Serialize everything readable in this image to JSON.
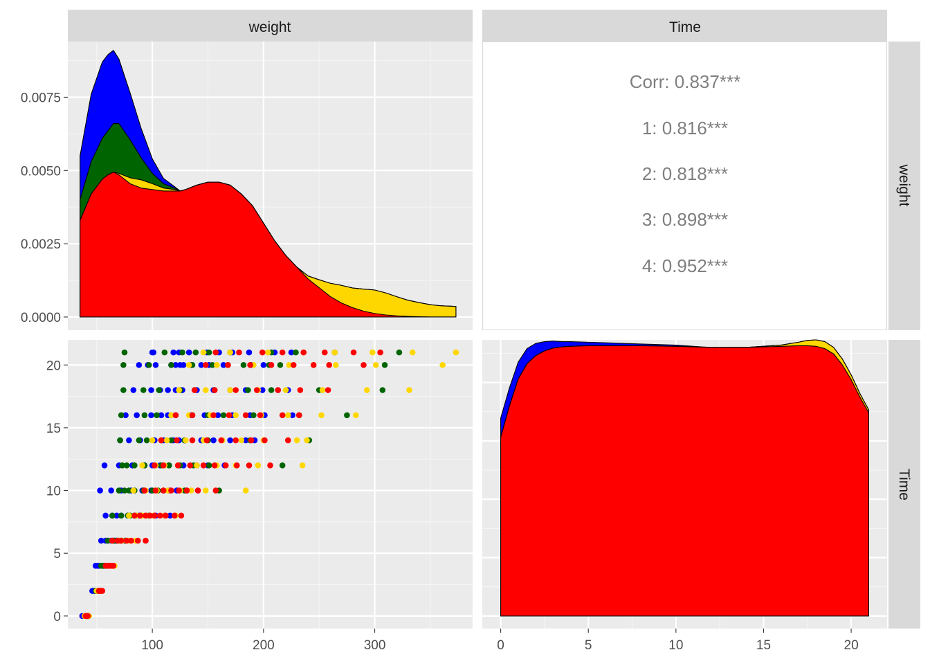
{
  "chart_data": {
    "type": "pairs-plot",
    "variables": [
      "weight",
      "Time"
    ],
    "strip_labels": {
      "top": [
        "weight",
        "Time"
      ],
      "right": [
        "weight",
        "Time"
      ]
    },
    "colors": {
      "1": "#0000FF",
      "2": "#006400",
      "3": "#FFD700",
      "4": "#FF0000"
    },
    "group_order": [
      "1",
      "2",
      "3",
      "4"
    ],
    "weight_density": {
      "type": "area",
      "position": "stack",
      "xlim": [
        24,
        388
      ],
      "ylim": [
        -0.00045,
        0.0094
      ],
      "y_ticks": [
        0.0,
        0.0025,
        0.005,
        0.0075
      ],
      "y_tick_labels": [
        "0.0000",
        "0.0025",
        "0.0050",
        "0.0075"
      ],
      "x_ticks": [
        100,
        200,
        300
      ],
      "x": [
        35,
        45,
        55,
        60,
        65,
        70,
        80,
        90,
        100,
        110,
        120,
        125,
        130,
        140,
        150,
        160,
        170,
        180,
        190,
        200,
        210,
        220,
        230,
        240,
        250,
        260,
        270,
        280,
        290,
        300,
        310,
        320,
        330,
        340,
        350,
        360,
        373
      ],
      "series": [
        {
          "name": "4",
          "values": [
            0.0033,
            0.0042,
            0.0047,
            0.00485,
            0.00495,
            0.00485,
            0.00455,
            0.0044,
            0.00435,
            0.0043,
            0.0043,
            0.0043,
            0.00435,
            0.0045,
            0.0046,
            0.0046,
            0.0045,
            0.0042,
            0.0038,
            0.0032,
            0.0026,
            0.0021,
            0.0017,
            0.0013,
            0.001,
            0.0007,
            0.00048,
            0.00032,
            0.0002,
            0.00012,
            7e-05,
            4e-05,
            2e-05,
            1e-05,
            0,
            0,
            0
          ]
        },
        {
          "name": "3",
          "values": [
            0,
            0,
            0,
            0,
            0,
            5e-05,
            0.0002,
            0.00028,
            0.0002,
            0.0001,
            5e-05,
            0,
            0,
            0,
            0,
            0,
            0,
            0,
            0,
            0,
            0,
            0,
            0,
            0.0001,
            0.00027,
            0.00045,
            0.0006,
            0.00067,
            0.00075,
            0.0008,
            0.00075,
            0.00065,
            0.00055,
            0.00048,
            0.00042,
            0.00038,
            0.00036
          ]
        },
        {
          "name": "2",
          "values": [
            0.0007,
            0.0011,
            0.0014,
            0.0015,
            0.00165,
            0.0017,
            0.0013,
            0.00075,
            0.00035,
            0.00015,
            5e-05,
            0,
            0,
            0,
            0,
            0,
            0,
            0,
            0,
            0,
            0,
            0,
            0,
            0,
            0,
            0,
            0,
            0,
            0,
            0,
            0,
            0,
            0,
            0,
            0,
            0,
            0
          ]
        },
        {
          "name": "1",
          "values": [
            0.0015,
            0.0023,
            0.0026,
            0.0026,
            0.0025,
            0.0022,
            0.0016,
            0.001,
            0.0005,
            0.00018,
            5e-05,
            0,
            0,
            0,
            0,
            0,
            0,
            0,
            0,
            0,
            0,
            0,
            0,
            0,
            0,
            0,
            0,
            0,
            0,
            0,
            0,
            0,
            0,
            0,
            0,
            0,
            0
          ]
        }
      ]
    },
    "correlation": {
      "title": "Corr: 0.837***",
      "lines": [
        "1: 0.816***",
        "2: 0.818***",
        "3: 0.898***",
        "4: 0.952***"
      ]
    },
    "scatter": {
      "type": "scatter",
      "xlim": [
        24,
        388
      ],
      "ylim": [
        -1,
        22
      ],
      "x_ticks": [
        100,
        200,
        300
      ],
      "x_tick_labels": [
        "100",
        "200",
        "300"
      ],
      "y_ticks": [
        0,
        5,
        10,
        15,
        20
      ],
      "y_tick_labels": [
        "0",
        "5",
        "10",
        "15",
        "20"
      ],
      "time_rows": [
        0,
        2,
        4,
        6,
        8,
        10,
        12,
        14,
        16,
        18,
        20,
        21
      ],
      "groups": {
        "1": [
          [
            37,
            41,
            42
          ],
          [
            46,
            48,
            49,
            50,
            51
          ],
          [
            49,
            51,
            52,
            56,
            57,
            58
          ],
          [
            54,
            58,
            60,
            63,
            65,
            66,
            68,
            72,
            75
          ],
          [
            58,
            64,
            68,
            72,
            78,
            84,
            88,
            95,
            103,
            111,
            116
          ],
          [
            53,
            63,
            72,
            81,
            91,
            99,
            105,
            115,
            122,
            131,
            141
          ],
          [
            57,
            70,
            82,
            93,
            100,
            107,
            115,
            128,
            140,
            150,
            165
          ],
          [
            71,
            79,
            89,
            102,
            110,
            119,
            124,
            129,
            144,
            155,
            170,
            184,
            192
          ],
          [
            76,
            86,
            99,
            108,
            114,
            121,
            135,
            147,
            159,
            172,
            188,
            201,
            226
          ],
          [
            83,
            99,
            107,
            114,
            121,
            127,
            140,
            155,
            170,
            184,
            199,
            213,
            222
          ],
          [
            88,
            96,
            103,
            117,
            121,
            125,
            128,
            135,
            144,
            151,
            164,
            189,
            200
          ],
          [
            100,
            101,
            119,
            124,
            133,
            149,
            160,
            172,
            187,
            210,
            225
          ]
        ],
        "2": [
          [
            40,
            41,
            42,
            43
          ],
          [
            49,
            51,
            52,
            53,
            54
          ],
          [
            54,
            56,
            57,
            59,
            61
          ],
          [
            60,
            64,
            66,
            68,
            70,
            72,
            76
          ],
          [
            64,
            72,
            78,
            80,
            84,
            90,
            97
          ],
          [
            70,
            75,
            79,
            84,
            92,
            100,
            105,
            110,
            129,
            160
          ],
          [
            73,
            77,
            84,
            93,
            108,
            115,
            125,
            137,
            151,
            217
          ],
          [
            71,
            88,
            95,
            108,
            117,
            129,
            150,
            188,
            241
          ],
          [
            72,
            93,
            104,
            136,
            150,
            164,
            191,
            232,
            275
          ],
          [
            74,
            92,
            106,
            125,
            138,
            156,
            186,
            207,
            250,
            307
          ],
          [
            74,
            97,
            117,
            136,
            154,
            168,
            182,
            205,
            215,
            309
          ],
          [
            75,
            111,
            127,
            139,
            151,
            170,
            207,
            229,
            264,
            322
          ]
        ],
        "3": [
          [
            39,
            41,
            42,
            43
          ],
          [
            50,
            52,
            53,
            54
          ],
          [
            59,
            62,
            64,
            66
          ],
          [
            64,
            70,
            73,
            77,
            80,
            85
          ],
          [
            79,
            86,
            91,
            95,
            101,
            111,
            121
          ],
          [
            83,
            94,
            104,
            114,
            125,
            135,
            148,
            184
          ],
          [
            91,
            103,
            111,
            123,
            140,
            158,
            175,
            195,
            235
          ],
          [
            100,
            113,
            130,
            146,
            163,
            180,
            200,
            230,
            239
          ],
          [
            117,
            133,
            152,
            175,
            198,
            222,
            252,
            283
          ],
          [
            124,
            148,
            170,
            195,
            220,
            253,
            293,
            331
          ],
          [
            133,
            158,
            191,
            223,
            245,
            265,
            301,
            361
          ],
          [
            146,
            170,
            204,
            236,
            264,
            298,
            334,
            373
          ]
        ],
        "4": [
          [
            40,
            41,
            42
          ],
          [
            52,
            53,
            54,
            55
          ],
          [
            58,
            60,
            62,
            64,
            65
          ],
          [
            64,
            69,
            72,
            77,
            81,
            87,
            94
          ],
          [
            84,
            89,
            94,
            98,
            102,
            107,
            112,
            120,
            126
          ],
          [
            93,
            103,
            110,
            117,
            124,
            131,
            141,
            157
          ],
          [
            102,
            110,
            123,
            134,
            146,
            156,
            166,
            176,
            187,
            206
          ],
          [
            108,
            122,
            136,
            149,
            162,
            175,
            189,
            201,
            222
          ],
          [
            121,
            136,
            155,
            169,
            184,
            197,
            217,
            232
          ],
          [
            138,
            156,
            175,
            194,
            213,
            233,
            258
          ],
          [
            148,
            168,
            188,
            207,
            227,
            245,
            259,
            290
          ],
          [
            157,
            178,
            199,
            217,
            236,
            255,
            281,
            305
          ]
        ]
      }
    },
    "time_density": {
      "type": "area",
      "position": "stack",
      "xlim": [
        -1.05,
        22.05
      ],
      "ylim": [
        -0.00215,
        0.0473
      ],
      "x_ticks": [
        0,
        5,
        10,
        15,
        20
      ],
      "x_tick_labels": [
        "0",
        "5",
        "10",
        "15",
        "20"
      ],
      "x": [
        0,
        0.5,
        1,
        1.5,
        2,
        2.5,
        3,
        3.5,
        4,
        5,
        6,
        8,
        10,
        12,
        14,
        16,
        17,
        17.5,
        18,
        18.5,
        19,
        19.5,
        20,
        20.5,
        21
      ],
      "series": [
        {
          "name": "4",
          "values": [
            0.0306,
            0.036,
            0.0406,
            0.0432,
            0.0446,
            0.0454,
            0.0459,
            0.0461,
            0.0462,
            0.0463,
            0.0463,
            0.0463,
            0.0462,
            0.046,
            0.046,
            0.0462,
            0.0463,
            0.0463,
            0.0462,
            0.0458,
            0.0449,
            0.043,
            0.0405,
            0.0375,
            0.0348
          ]
        },
        {
          "name": "3",
          "values": [
            0,
            0,
            0,
            0,
            0,
            0,
            0,
            0,
            0,
            0,
            0,
            0,
            0,
            0,
            0,
            0.0002,
            0.0006,
            0.0009,
            0.0011,
            0.0012,
            0.0011,
            0.001,
            0.0008,
            0.0006,
            0.0005
          ]
        },
        {
          "name": "2",
          "values": [
            0,
            0,
            0,
            0,
            0,
            0,
            0,
            0,
            0,
            0,
            0,
            0,
            0,
            0,
            0,
            0,
            0,
            0,
            0,
            0,
            0,
            0,
            0,
            0,
            0
          ]
        },
        {
          "name": "1",
          "values": [
            0.0033,
            0.0031,
            0.0029,
            0.0026,
            0.0021,
            0.0016,
            0.0012,
            0.0009,
            0.0008,
            0.0006,
            0.0005,
            0.0003,
            0.0002,
            0,
            0,
            0,
            0,
            0,
            0,
            0,
            0,
            0,
            0,
            0,
            0
          ]
        }
      ]
    }
  }
}
